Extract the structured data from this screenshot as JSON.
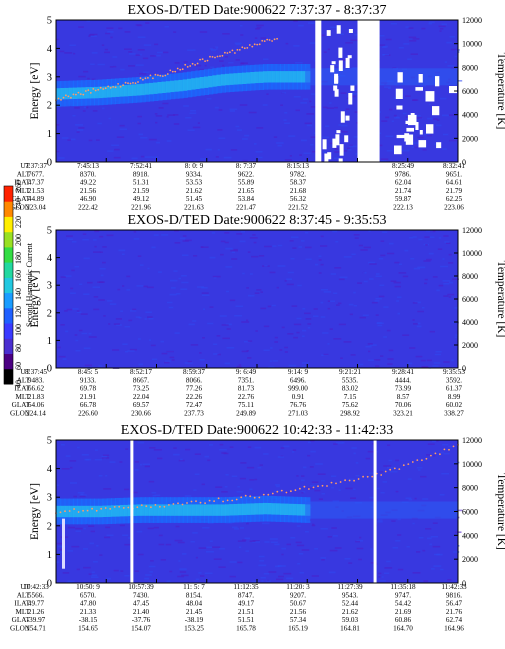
{
  "chart_data": {
    "type": "heatmap",
    "colorbar": {
      "label": "Second Harmonic Current",
      "ticks": [
        "40",
        "60",
        "80",
        "100",
        "120",
        "140",
        "160",
        "180",
        "200",
        "220",
        "240",
        "260"
      ],
      "colors": [
        "#000000",
        "#4b0082",
        "#4a2fd0",
        "#3a3aff",
        "#2060ff",
        "#1a9cff",
        "#22c8e0",
        "#22d8a0",
        "#33dd44",
        "#99e022",
        "#ffee00",
        "#ff8800",
        "#ff2200"
      ]
    },
    "panels": [
      {
        "title": "EXOS-D/TED   Date:900622   7:37:37 - 8:37:37",
        "ylabel": "Energy [eV]",
        "y2label": "Temperature [K]",
        "ylim": [
          0,
          5
        ],
        "y2lim": [
          0,
          12000
        ],
        "yticks": [
          "0",
          "1",
          "2",
          "3",
          "4",
          "5"
        ],
        "y2ticks": [
          "0",
          "2000",
          "4000",
          "6000",
          "8000",
          "10000",
          "12000"
        ],
        "band_center_ev": [
          2.4,
          2.45,
          2.55,
          2.7,
          2.9,
          3.0,
          3.0
        ],
        "temperature_trend_k": [
          5300,
          6000,
          6700,
          7500,
          8600,
          9500,
          10500
        ],
        "data_gaps": [
          "8:10:30 - 8:13:30",
          "8:17 - 8:23"
        ],
        "annotation_rows": [
          {
            "label": "UT",
            "values": [
              "7:37:37",
              "7:45:13",
              "7:52:41",
              "8: 0: 9",
              "8: 7:37",
              "8:15:13",
              "",
              "8:25:49",
              "8:32:41"
            ]
          },
          {
            "label": "ALT",
            "values": [
              "7677.",
              "8370.",
              "8918.",
              "9334.",
              "9622.",
              "9782.",
              "",
              "9786.",
              "9651."
            ]
          },
          {
            "label": "ILAT",
            "values": [
              "47.37",
              "49.22",
              "51.31",
              "53.53",
              "55.89",
              "58.37",
              "",
              "62.04",
              "64.61"
            ]
          },
          {
            "label": "MLT",
            "values": [
              "21.53",
              "21.56",
              "21.59",
              "21.62",
              "21.65",
              "21.68",
              "",
              "21.74",
              "21.79"
            ]
          },
          {
            "label": "GLAT",
            "values": [
              "44.89",
              "46.90",
              "49.12",
              "51.45",
              "53.84",
              "56.32",
              "",
              "59.87",
              "62.25"
            ]
          },
          {
            "label": "GLON",
            "values": [
              "223.04",
              "222.42",
              "221.96",
              "221.63",
              "221.47",
              "221.52",
              "",
              "222.13",
              "223.06"
            ]
          }
        ]
      },
      {
        "title": "EXOS-D/TED   Date:900622   8:37:45 - 9:35:53",
        "ylabel": "Energy [eV]",
        "y2label": "Temperature [K]",
        "ylim": [
          0,
          5
        ],
        "y2lim": [
          0,
          12000
        ],
        "yticks": [
          "0",
          "1",
          "2",
          "3",
          "4",
          "5"
        ],
        "y2ticks": [
          "0",
          "2000",
          "4000",
          "6000",
          "8000",
          "10000",
          "12000"
        ],
        "annotation_rows": [
          {
            "label": "UT",
            "values": [
              "8:37:45",
              "8:45: 5",
              "8:52:17",
              "8:59:37",
              "9: 6:49",
              "9:14: 9",
              "9:21:21",
              "9:28:41",
              "9:35:53"
            ]
          },
          {
            "label": "ALT",
            "values": [
              "9483.",
              "9133.",
              "8667.",
              "8066.",
              "7351.",
              "6496.",
              "5535.",
              "4444.",
              "3592."
            ]
          },
          {
            "label": "ILAT",
            "values": [
              "66.62",
              "69.78",
              "73.25",
              "77.26",
              "81.73",
              "999.00",
              "83.02",
              "73.99",
              "61.37"
            ]
          },
          {
            "label": "MLT",
            "values": [
              "21.83",
              "21.91",
              "22.04",
              "22.26",
              "22.76",
              "0.91",
              "7.15",
              "8.57",
              "8.99"
            ]
          },
          {
            "label": "GLAT",
            "values": [
              "64.06",
              "66.78",
              "69.57",
              "72.47",
              "75.11",
              "76.76",
              "75.62",
              "70.06",
              "60.02"
            ]
          },
          {
            "label": "GLON",
            "values": [
              "224.14",
              "226.60",
              "230.66",
              "237.73",
              "249.89",
              "271.03",
              "298.92",
              "323.21",
              "338.27"
            ]
          }
        ]
      },
      {
        "title": "EXOS-D/TED   Date:900622   10:42:33 - 11:42:33",
        "ylabel": "Energy [eV]",
        "y2label": "Temperature [K]",
        "ylim": [
          0,
          5
        ],
        "y2lim": [
          0,
          12000
        ],
        "yticks": [
          "0",
          "1",
          "2",
          "3",
          "4",
          "5"
        ],
        "y2ticks": [
          "0",
          "2000",
          "4000",
          "6000",
          "8000",
          "10000",
          "12000"
        ],
        "band_center_ev": [
          2.5,
          2.5,
          2.55,
          2.55,
          2.55,
          2.6,
          2.55
        ],
        "temperature_trend_k": [
          6000,
          6300,
          6700,
          7300,
          8200,
          9400,
          11500
        ],
        "data_gaps": [
          "10:50:30",
          "11:32:30"
        ],
        "annotation_rows": [
          {
            "label": "UT",
            "values": [
              "10:42:33",
              "10:50: 9",
              "10:57:39",
              "11: 5: 7",
              "11:12:35",
              "11:20: 3",
              "11:27:39",
              "11:35:18",
              "11:42:33"
            ]
          },
          {
            "label": "ALT",
            "values": [
              "5566.",
              "6570.",
              "7430.",
              "8154.",
              "8747.",
              "9207.",
              "9543.",
              "9747.",
              "9816."
            ]
          },
          {
            "label": "ILAT",
            "values": [
              "49.77",
              "47.80",
              "47.45",
              "48.04",
              "49.17",
              "50.67",
              "52.44",
              "54.42",
              "56.47"
            ]
          },
          {
            "label": "MLT",
            "values": [
              "21.26",
              "21.33",
              "21.40",
              "21.45",
              "21.51",
              "21.56",
              "21.62",
              "21.69",
              "21.76"
            ]
          },
          {
            "label": "GLAT",
            "values": [
              "-39.97",
              "-38.15",
              "-37.76",
              "-38.19",
              "51.51",
              "57.34",
              "59.03",
              "60.86",
              "62.74"
            ]
          },
          {
            "label": "GLON",
            "values": [
              "154.71",
              "154.65",
              "154.07",
              "153.25",
              "165.78",
              "165.19",
              "164.81",
              "164.70",
              "164.96"
            ]
          }
        ]
      }
    ]
  }
}
